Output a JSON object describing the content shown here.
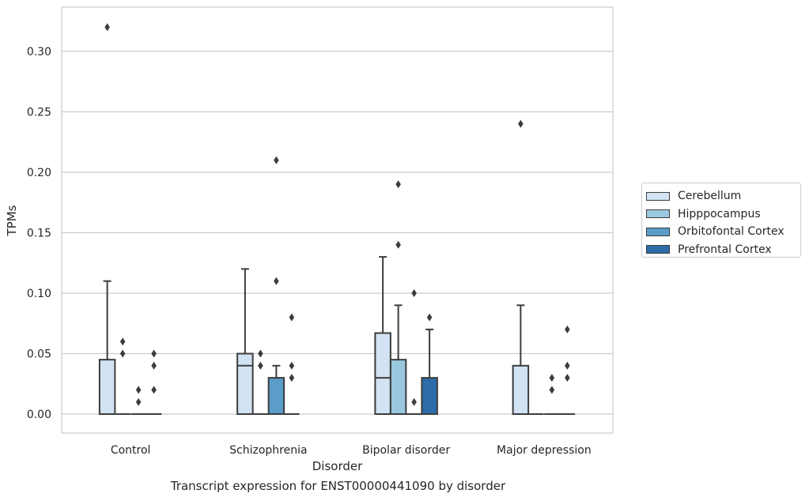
{
  "chart_data": {
    "type": "box",
    "categories": [
      "Control",
      "Schizophrenia",
      "Bipolar disorder",
      "Major depression"
    ],
    "xlabel": "Disorder",
    "ylabel": "TPMs",
    "caption": "Transcript expression for ENST00000441090 by disorder",
    "ylim": [
      -0.0155,
      0.3355
    ],
    "yticks": [
      0.0,
      0.05,
      0.1,
      0.15,
      0.2,
      0.25,
      0.3
    ],
    "ytick_labels": [
      "0.00",
      "0.05",
      "0.10",
      "0.15",
      "0.20",
      "0.25",
      "0.30"
    ],
    "grid": "horizontal",
    "legend_position": "right",
    "series": [
      {
        "name": "Cerebellum",
        "color": "#d2e3f3",
        "boxes": [
          {
            "q1": 0.0,
            "median": 0.0,
            "q3": 0.045,
            "whisker_low": 0.0,
            "whisker_high": 0.11,
            "outliers": [
              0.32
            ]
          },
          {
            "q1": 0.0,
            "median": 0.04,
            "q3": 0.05,
            "whisker_low": 0.0,
            "whisker_high": 0.12,
            "outliers": []
          },
          {
            "q1": 0.0,
            "median": 0.03,
            "q3": 0.067,
            "whisker_low": 0.0,
            "whisker_high": 0.13,
            "outliers": []
          },
          {
            "q1": 0.0,
            "median": 0.0,
            "q3": 0.04,
            "whisker_low": 0.0,
            "whisker_high": 0.09,
            "outliers": [
              0.24
            ]
          }
        ]
      },
      {
        "name": "Hipppocampus",
        "color": "#9ac8e0",
        "boxes": [
          {
            "q1": 0.0,
            "median": 0.0,
            "q3": 0.0,
            "whisker_low": 0.0,
            "whisker_high": 0.0,
            "outliers": [
              0.05,
              0.06
            ]
          },
          {
            "q1": 0.0,
            "median": 0.0,
            "q3": 0.0,
            "whisker_low": 0.0,
            "whisker_high": 0.0,
            "outliers": [
              0.04,
              0.05
            ]
          },
          {
            "q1": 0.0,
            "median": 0.0,
            "q3": 0.045,
            "whisker_low": 0.0,
            "whisker_high": 0.09,
            "outliers": [
              0.14,
              0.19
            ]
          },
          {
            "q1": 0.0,
            "median": 0.0,
            "q3": 0.0,
            "whisker_low": 0.0,
            "whisker_high": 0.0,
            "outliers": []
          }
        ]
      },
      {
        "name": "Orbitofontal Cortex",
        "color": "#5a9dc9",
        "boxes": [
          {
            "q1": 0.0,
            "median": 0.0,
            "q3": 0.0,
            "whisker_low": 0.0,
            "whisker_high": 0.0,
            "outliers": [
              0.01,
              0.02
            ]
          },
          {
            "q1": 0.0,
            "median": 0.0,
            "q3": 0.03,
            "whisker_low": 0.0,
            "whisker_high": 0.04,
            "outliers": [
              0.11,
              0.21
            ]
          },
          {
            "q1": 0.0,
            "median": 0.0,
            "q3": 0.0,
            "whisker_low": 0.0,
            "whisker_high": 0.0,
            "outliers": [
              0.01,
              0.1
            ]
          },
          {
            "q1": 0.0,
            "median": 0.0,
            "q3": 0.0,
            "whisker_low": 0.0,
            "whisker_high": 0.0,
            "outliers": [
              0.02,
              0.03
            ]
          }
        ]
      },
      {
        "name": "Prefrontal Cortex",
        "color": "#2b6ca9",
        "boxes": [
          {
            "q1": 0.0,
            "median": 0.0,
            "q3": 0.0,
            "whisker_low": 0.0,
            "whisker_high": 0.0,
            "outliers": [
              0.02,
              0.04,
              0.05
            ]
          },
          {
            "q1": 0.0,
            "median": 0.0,
            "q3": 0.0,
            "whisker_low": 0.0,
            "whisker_high": 0.0,
            "outliers": [
              0.03,
              0.04,
              0.08
            ]
          },
          {
            "q1": 0.0,
            "median": 0.0,
            "q3": 0.03,
            "whisker_low": 0.0,
            "whisker_high": 0.07,
            "outliers": [
              0.08
            ]
          },
          {
            "q1": 0.0,
            "median": 0.0,
            "q3": 0.0,
            "whisker_low": 0.0,
            "whisker_high": 0.0,
            "outliers": [
              0.03,
              0.04,
              0.07
            ]
          }
        ]
      }
    ]
  }
}
